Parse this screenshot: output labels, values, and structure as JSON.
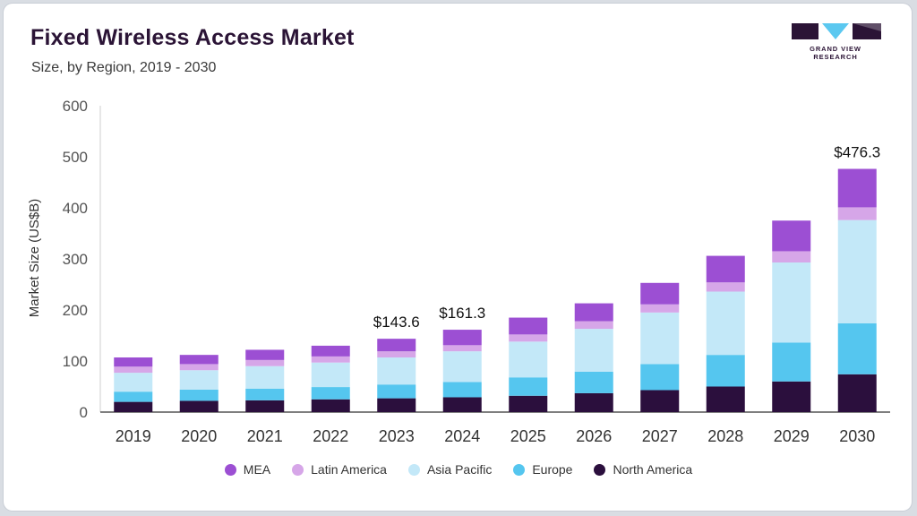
{
  "header": {
    "title": "Fixed Wireless Access Market",
    "subtitle": "Size, by Region, 2019 - 2030"
  },
  "logo": {
    "text": "GRAND VIEW RESEARCH",
    "color": "#2b1436",
    "accent": "#5bc8f0"
  },
  "chart_data": {
    "type": "bar",
    "stacked": true,
    "title": "Fixed Wireless Access Market",
    "subtitle": "Size, by Region, 2019 - 2030",
    "xlabel": "",
    "ylabel": "Market Size (US$B)",
    "ylim": [
      0,
      600
    ],
    "yticks": [
      0,
      100,
      200,
      300,
      400,
      500,
      600
    ],
    "categories": [
      "2019",
      "2020",
      "2021",
      "2022",
      "2023",
      "2024",
      "2025",
      "2026",
      "2027",
      "2028",
      "2029",
      "2030"
    ],
    "series": [
      {
        "name": "North America",
        "color": "#2b0f3d",
        "values": [
          20,
          22,
          23,
          25,
          27,
          29,
          32,
          37,
          43,
          50,
          60,
          74
        ]
      },
      {
        "name": "Europe",
        "color": "#55c6ef",
        "values": [
          20,
          22,
          23,
          24,
          27,
          30,
          36,
          42,
          51,
          62,
          76,
          100
        ]
      },
      {
        "name": "Asia Pacific",
        "color": "#c3e8f8",
        "values": [
          37,
          38,
          44,
          48,
          53,
          60,
          70,
          84,
          101,
          124,
          157,
          202
        ]
      },
      {
        "name": "Latin America",
        "color": "#d6a6e8",
        "values": [
          12,
          12,
          12,
          12,
          12,
          12,
          14,
          15,
          16,
          18,
          22,
          25
        ]
      },
      {
        "name": "MEA",
        "color": "#9c4fd3",
        "values": [
          18,
          18,
          20,
          21,
          24.6,
          30.3,
          33,
          35,
          42,
          52,
          60,
          75.3
        ]
      }
    ],
    "total_labels": [
      {
        "category": "2023",
        "text": "$143.6"
      },
      {
        "category": "2024",
        "text": "$161.3"
      },
      {
        "category": "2030",
        "text": "$476.3"
      }
    ],
    "legend": [
      "MEA",
      "Latin America",
      "Asia Pacific",
      "Europe",
      "North America"
    ],
    "legend_position": "bottom-center"
  }
}
